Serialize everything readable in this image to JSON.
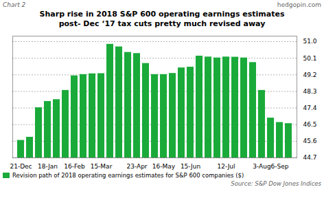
{
  "chart_data": {
    "type": "bar",
    "title": "Sharp rise in 2018 S&P 600 operating earnings estimates",
    "subtitle": "post- Dec ‘17 tax cuts pretty much revised  away",
    "annotations": [
      "Chart 2",
      "hedgopin.com",
      "Source: S&P Dow Jones Indices"
    ],
    "categories": [
      "21-Dec",
      null,
      null,
      "18-Jan",
      null,
      null,
      "16-Feb",
      null,
      null,
      "15-Mar",
      null,
      null,
      null,
      "23-Apr",
      null,
      null,
      "16-May",
      null,
      null,
      "15-Jun",
      null,
      null,
      null,
      "12-Jul",
      null,
      null,
      null,
      "3-Aug",
      null,
      "6-Sep",
      null
    ],
    "series": [
      {
        "name": "Revision path of 2018 operating earnings estimates for S&P 600 companies ($)",
        "color": "#1aaa3a",
        "values": [
          45.65,
          45.82,
          47.42,
          47.76,
          47.86,
          48.36,
          49.15,
          49.22,
          49.26,
          49.27,
          50.86,
          50.72,
          50.42,
          50.36,
          49.82,
          49.22,
          49.22,
          49.28,
          49.58,
          49.62,
          50.22,
          50.17,
          50.12,
          50.17,
          50.16,
          50.12,
          49.87,
          48.36,
          46.86,
          46.62,
          46.56
        ]
      }
    ],
    "ylim": [
      44.7,
      51.3
    ],
    "yticks": [
      44.7,
      45.6,
      46.5,
      47.4,
      48.3,
      49.2,
      50.1,
      {
        "value": 51.0,
        "label": "51.0"
      }
    ],
    "grid": true,
    "legend": "lower left"
  }
}
